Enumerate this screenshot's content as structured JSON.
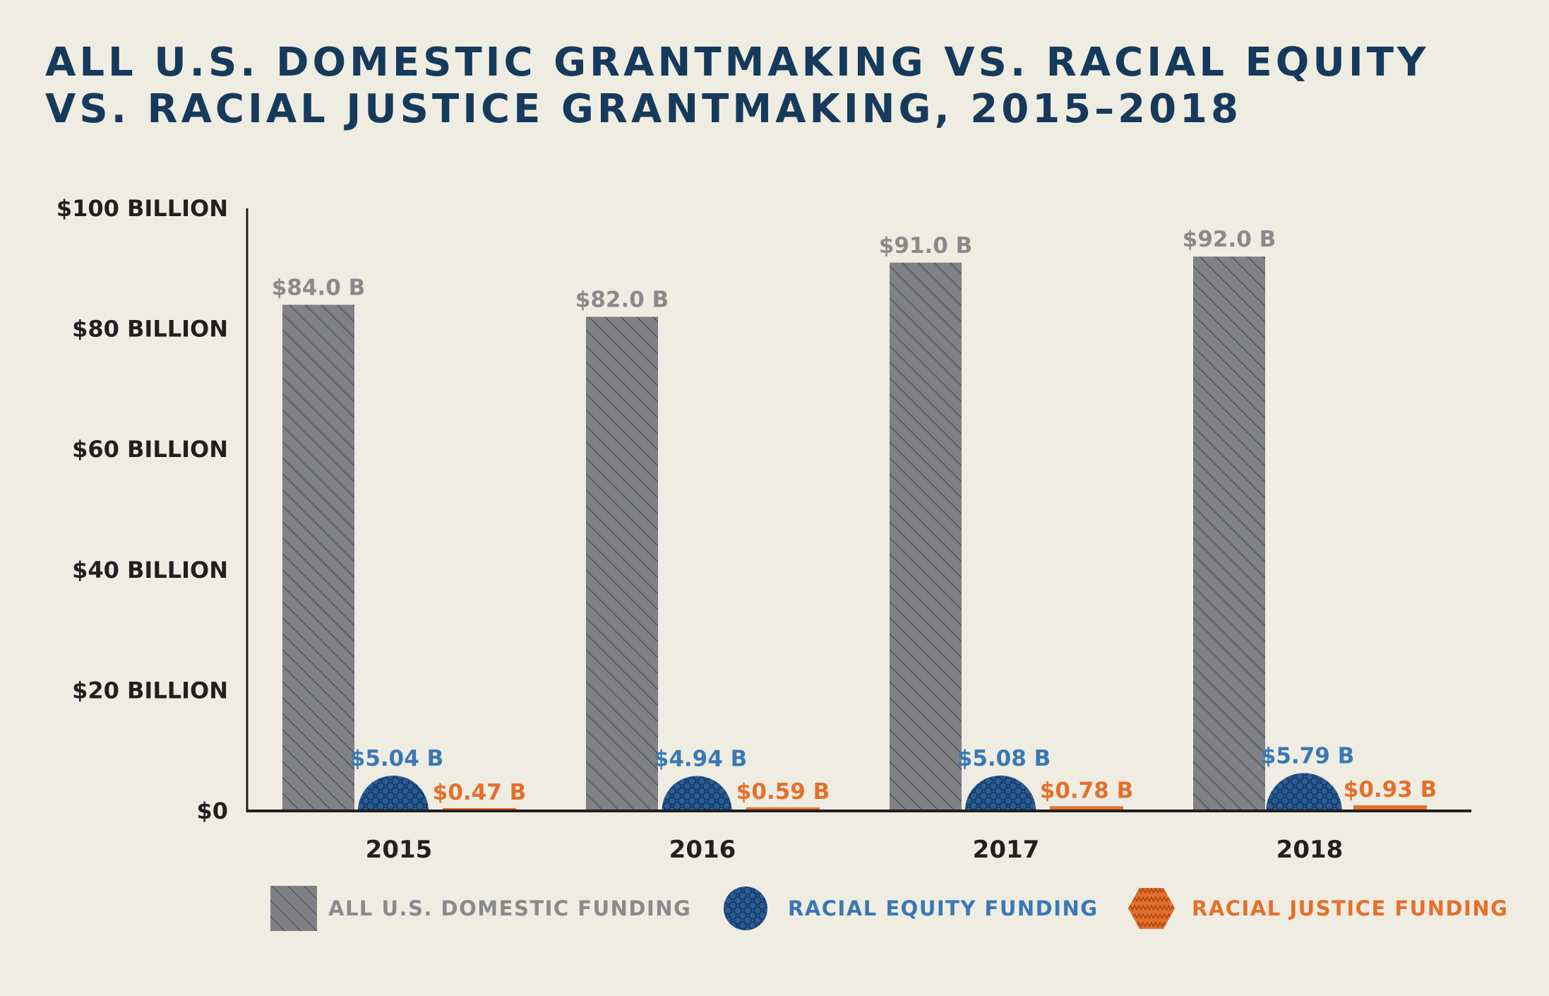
{
  "title_lines": [
    "ALL U.S. DOMESTIC GRANTMAKING VS. RACIAL EQUITY",
    "VS. RACIAL JUSTICE GRANTMAKING, 2015–2018"
  ],
  "colors": {
    "background": "#efece2",
    "title": "#163a5c",
    "all_domestic": "#808184",
    "all_domestic_label": "#8a8a8c",
    "racial_equity": "#2a5d97",
    "racial_equity_label": "#3a78b4",
    "racial_justice": "#e4702b",
    "axis": "#231f20"
  },
  "chart_data": {
    "type": "bar",
    "title": "ALL U.S. DOMESTIC GRANTMAKING VS. RACIAL EQUITY VS. RACIAL JUSTICE GRANTMAKING, 2015–2018",
    "categories": [
      "2015",
      "2016",
      "2017",
      "2018"
    ],
    "ylim": [
      0,
      100
    ],
    "yticks": [
      0,
      20,
      40,
      60,
      80,
      100
    ],
    "ytick_labels": [
      "$0",
      "$20 BILLION",
      "$40 BILLION",
      "$60 BILLION",
      "$80 BILLION",
      "$100 BILLION"
    ],
    "grid": false,
    "legend_position": "bottom",
    "series": [
      {
        "name": "ALL U.S. DOMESTIC FUNDING",
        "values": [
          84.0,
          82.0,
          91.0,
          92.0
        ],
        "labels": [
          "$84.0 B",
          "$82.0 B",
          "$91.0 B",
          "$92.0 B"
        ],
        "mark": "hatched-bar"
      },
      {
        "name": "RACIAL EQUITY FUNDING",
        "values": [
          5.04,
          4.94,
          5.08,
          5.79
        ],
        "labels": [
          "$5.04 B",
          "$4.94 B",
          "$5.08 B",
          "$5.79 B"
        ],
        "mark": "semicircle"
      },
      {
        "name": "RACIAL JUSTICE FUNDING",
        "values": [
          0.47,
          0.59,
          0.78,
          0.93
        ],
        "labels": [
          "$0.47 B",
          "$0.59 B",
          "$0.78 B",
          "$0.93 B"
        ],
        "mark": "bar"
      }
    ]
  }
}
